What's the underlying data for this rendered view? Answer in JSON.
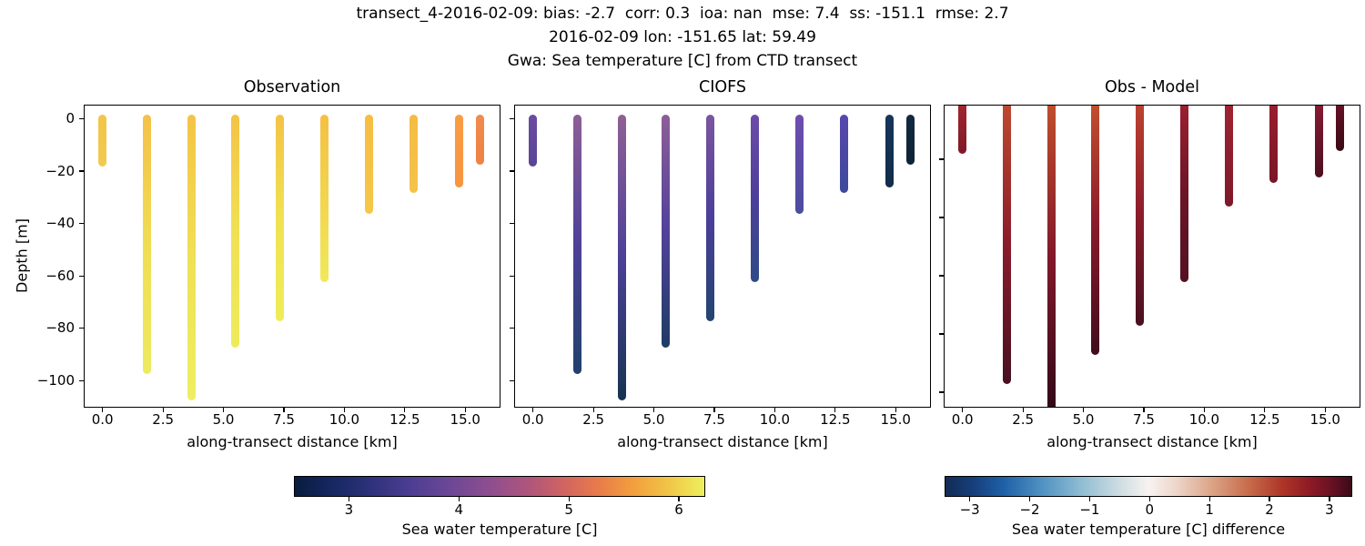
{
  "header": {
    "line1": "transect_4-2016-02-09: bias: -2.7  corr: 0.3  ioa: nan  mse: 7.4  ss: -151.1  rmse: 2.7",
    "line2": "2016-02-09 lon: -151.65 lat: 59.49",
    "line3": "Gwa: Sea temperature [C] from CTD transect"
  },
  "panels": [
    {
      "title": "Observation"
    },
    {
      "title": "CIOFS"
    },
    {
      "title": "Obs - Model"
    }
  ],
  "axes": {
    "ylabel": "Depth [m]",
    "xlabel": "along-transect distance [km]",
    "ytick_labels": [
      "0",
      "−20",
      "−40",
      "−60",
      "−80",
      "−100"
    ],
    "ytick_values": [
      0,
      -20,
      -40,
      -60,
      -80,
      -100
    ],
    "xtick_labels": [
      "0.0",
      "2.5",
      "5.0",
      "7.5",
      "10.0",
      "12.5",
      "15.0"
    ],
    "xtick_values": [
      0,
      2.5,
      5,
      7.5,
      10,
      12.5,
      15
    ]
  },
  "colorbars": [
    {
      "label": "Sea water temperature [C]",
      "tick_labels": [
        "3",
        "4",
        "5",
        "6"
      ],
      "tick_values": [
        3,
        4,
        5,
        6
      ],
      "vmin": 2.5,
      "vmax": 6.24,
      "colormap": "thermal (navy-purple-orange-yellow)",
      "gradient": [
        [
          "#081d3f",
          0
        ],
        [
          "#13265e",
          8
        ],
        [
          "#2c3179",
          18
        ],
        [
          "#4c3d92",
          28
        ],
        [
          "#6d4796",
          38
        ],
        [
          "#8f4e8f",
          48
        ],
        [
          "#b25679",
          58
        ],
        [
          "#d16560",
          66
        ],
        [
          "#e87b4b",
          74
        ],
        [
          "#f29c3e",
          82
        ],
        [
          "#f1bf45",
          90
        ],
        [
          "#eef05e",
          100
        ]
      ]
    },
    {
      "label": "Sea water temperature [C] difference",
      "tick_labels": [
        "−3",
        "−2",
        "−1",
        "0",
        "1",
        "2",
        "3"
      ],
      "tick_values": [
        -3,
        -2,
        -1,
        0,
        1,
        2,
        3
      ],
      "vmin": -3.42,
      "vmax": 3.38,
      "colormap": "balance (navy-blue-white-red-maroon)",
      "gradient": [
        [
          "#122c54",
          0
        ],
        [
          "#173f7d",
          7
        ],
        [
          "#1d5fa5",
          14
        ],
        [
          "#5193c2",
          24
        ],
        [
          "#93bfd3",
          34
        ],
        [
          "#cfdde2",
          43
        ],
        [
          "#f7f3f1",
          50
        ],
        [
          "#eed5c9",
          57
        ],
        [
          "#dba183",
          66
        ],
        [
          "#c66a4a",
          75
        ],
        [
          "#ae3527",
          83
        ],
        [
          "#8c1a26",
          90
        ],
        [
          "#611023",
          96
        ],
        [
          "#3c0a18",
          100
        ]
      ]
    }
  ],
  "chart_data": {
    "type": "scatter",
    "description": "Three-panel CTD transect of vertical temperature profiles: observed, CIOFS model, and observation-minus-model difference. Each station is a vertical column of scatter points colored by value.",
    "xlabel": "along-transect distance [km]",
    "ylabel": "Depth [m]",
    "xlim": [
      -0.8,
      16.5
    ],
    "ylim_obs_model_panels": [
      5,
      -110
    ],
    "ylim_diff_panel": [
      0,
      -105
    ],
    "stations": [
      {
        "x_km": 0.0,
        "bottom_depth_m": -17,
        "obs": {
          "surface_C": 5.6,
          "bottom_C": 5.7,
          "colors": [
            "#f2c549",
            "#f0cb4f"
          ]
        },
        "model": {
          "surface_C": 3.9,
          "bottom_C": 3.8,
          "colors": [
            "#6b4ba1",
            "#5b4496"
          ]
        },
        "diff": {
          "surface_C": 2.75,
          "bottom_C": 2.95,
          "colors": [
            "#a52a2f",
            "#7f1829"
          ]
        }
      },
      {
        "x_km": 1.84,
        "bottom_depth_m": -96,
        "obs": {
          "surface_C": 5.55,
          "bottom_C": 6.15,
          "colors": [
            "#f4c148",
            "#f0dd52",
            "#eeea5e"
          ]
        },
        "model": {
          "surface_C": 4.35,
          "bottom_C": 3.05,
          "colors": [
            "#8d5f96",
            "#4e4099",
            "#21416b"
          ]
        },
        "diff": {
          "surface_C": 2.3,
          "bottom_C": 3.05,
          "colors": [
            "#c04b2e",
            "#8c1c2b",
            "#471021"
          ]
        }
      },
      {
        "x_km": 3.68,
        "bottom_depth_m": -106,
        "obs": {
          "surface_C": 5.6,
          "bottom_C": 6.25,
          "colors": [
            "#f4c347",
            "#f0e055",
            "#edef62"
          ]
        },
        "model": {
          "surface_C": 4.4,
          "bottom_C": 2.85,
          "colors": [
            "#906095",
            "#4c4098",
            "#17344f"
          ]
        },
        "diff": {
          "surface_C": 2.25,
          "bottom_C": 3.35,
          "colors": [
            "#c4502d",
            "#82192a",
            "#300818"
          ]
        }
      },
      {
        "x_km": 5.52,
        "bottom_depth_m": -86,
        "obs": {
          "surface_C": 5.6,
          "bottom_C": 6.2,
          "colors": [
            "#f4c347",
            "#f0e055",
            "#eeeb5c"
          ]
        },
        "model": {
          "surface_C": 4.35,
          "bottom_C": 3.0,
          "colors": [
            "#8d5e98",
            "#52419b",
            "#1d3c64"
          ]
        },
        "diff": {
          "surface_C": 2.2,
          "bottom_C": 3.1,
          "colors": [
            "#c6522e",
            "#881b2b",
            "#400d1c"
          ]
        }
      },
      {
        "x_km": 7.36,
        "bottom_depth_m": -76,
        "obs": {
          "surface_C": 5.6,
          "bottom_C": 6.2,
          "colors": [
            "#f4c246",
            "#f0e252",
            "#efed58"
          ]
        },
        "model": {
          "surface_C": 4.1,
          "bottom_C": 3.1,
          "colors": [
            "#7c55a0",
            "#4b3f9a",
            "#234470"
          ]
        },
        "diff": {
          "surface_C": 2.35,
          "bottom_C": 3.05,
          "colors": [
            "#c04430",
            "#8d1d2b",
            "#471020"
          ]
        }
      },
      {
        "x_km": 9.2,
        "bottom_depth_m": -61,
        "obs": {
          "surface_C": 5.5,
          "bottom_C": 6.15,
          "colors": [
            "#f5c044",
            "#f2d54d",
            "#f0e95a"
          ]
        },
        "model": {
          "surface_C": 3.95,
          "bottom_C": 3.3,
          "colors": [
            "#6d4ba7",
            "#4c3f9b",
            "#2f4a85"
          ]
        },
        "diff": {
          "surface_C": 2.8,
          "bottom_C": 3.2,
          "colors": [
            "#9e2132",
            "#6d1527",
            "#521122"
          ]
        }
      },
      {
        "x_km": 11.04,
        "bottom_depth_m": -35,
        "obs": {
          "surface_C": 5.45,
          "bottom_C": 5.7,
          "colors": [
            "#f6bd41",
            "#f5c74a"
          ]
        },
        "model": {
          "surface_C": 3.95,
          "bottom_C": 3.6,
          "colors": [
            "#6f4cae",
            "#4b4d9f"
          ]
        },
        "diff": {
          "surface_C": 2.75,
          "bottom_C": 3.0,
          "colors": [
            "#a12433",
            "#7d1929"
          ]
        }
      },
      {
        "x_km": 12.88,
        "bottom_depth_m": -27,
        "obs": {
          "surface_C": 5.4,
          "bottom_C": 5.6,
          "colors": [
            "#f5bc42",
            "#f5c24b"
          ]
        },
        "model": {
          "surface_C": 3.75,
          "bottom_C": 3.55,
          "colors": [
            "#5847ad",
            "#3d4a9b"
          ]
        },
        "diff": {
          "surface_C": 2.8,
          "bottom_C": 3.05,
          "colors": [
            "#9c1f2e",
            "#791628"
          ]
        }
      },
      {
        "x_km": 14.77,
        "bottom_depth_m": -25,
        "obs": {
          "surface_C": 5.1,
          "bottom_C": 5.0,
          "colors": [
            "#f89d44",
            "#f79440"
          ]
        },
        "model": {
          "surface_C": 2.85,
          "bottom_C": 2.7,
          "colors": [
            "#17355b",
            "#122c49"
          ]
        },
        "diff": {
          "surface_C": 2.95,
          "bottom_C": 3.3,
          "colors": [
            "#8c1c33",
            "#4c0f20"
          ]
        }
      },
      {
        "x_km": 15.63,
        "bottom_depth_m": -16,
        "obs": {
          "surface_C": 4.85,
          "bottom_C": 4.75,
          "colors": [
            "#f08b4e",
            "#ee8245"
          ]
        },
        "model": {
          "surface_C": 2.7,
          "bottom_C": 2.6,
          "colors": [
            "#12293f",
            "#0f2335"
          ]
        },
        "diff": {
          "surface_C": 3.1,
          "bottom_C": 3.4,
          "colors": [
            "#6d1326",
            "#390a16"
          ]
        }
      }
    ]
  }
}
